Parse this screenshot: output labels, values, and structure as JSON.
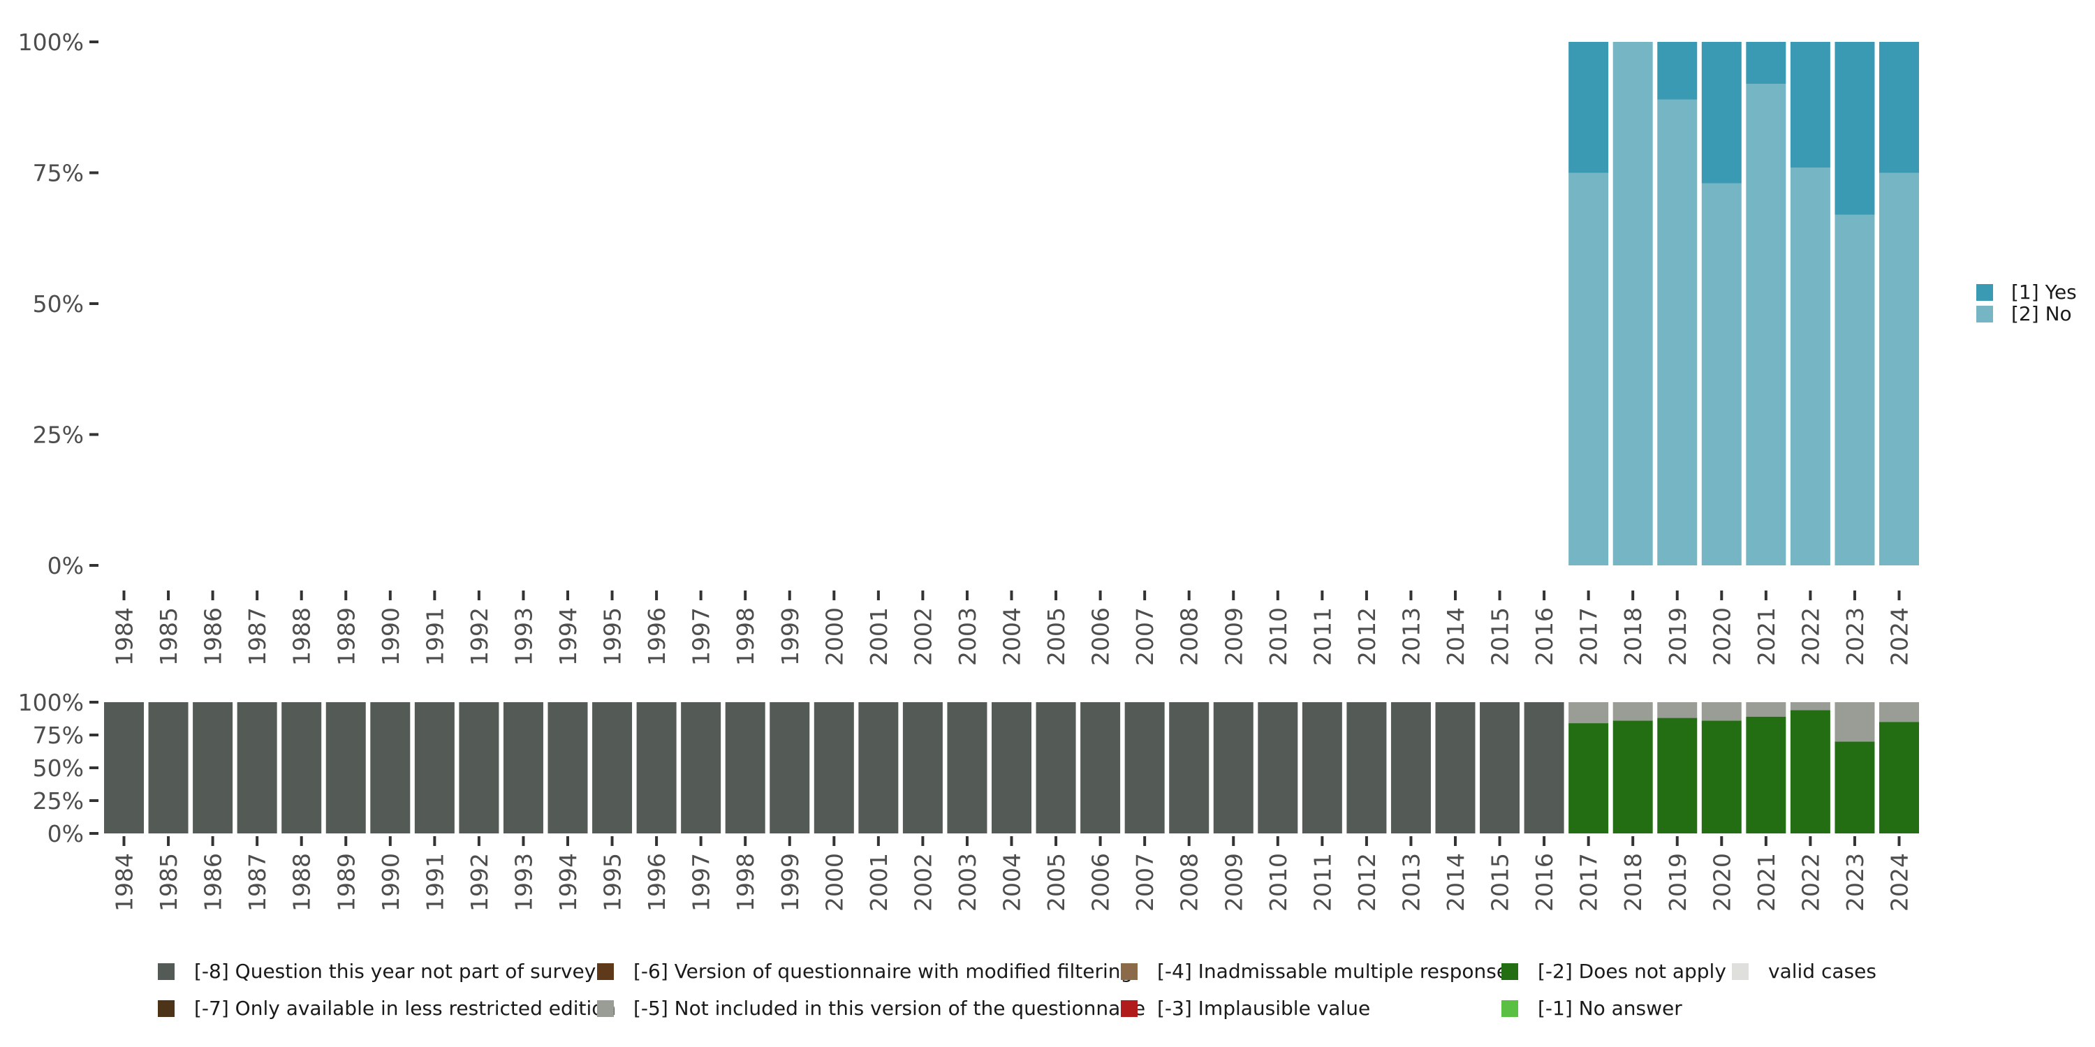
{
  "chart_data": [
    {
      "type": "bar",
      "stacked": true,
      "normalized": true,
      "title": "",
      "xlabel": "",
      "ylabel": "",
      "ylim": [
        0,
        100
      ],
      "yticks": [
        "0%",
        "25%",
        "50%",
        "75%",
        "100%"
      ],
      "categories": [
        "1984",
        "1985",
        "1986",
        "1987",
        "1988",
        "1989",
        "1990",
        "1991",
        "1992",
        "1993",
        "1994",
        "1995",
        "1996",
        "1997",
        "1998",
        "1999",
        "2000",
        "2001",
        "2002",
        "2003",
        "2004",
        "2005",
        "2006",
        "2007",
        "2008",
        "2009",
        "2010",
        "2011",
        "2012",
        "2013",
        "2014",
        "2015",
        "2016",
        "2017",
        "2018",
        "2019",
        "2020",
        "2021",
        "2022",
        "2023",
        "2024"
      ],
      "series": [
        {
          "name": "[2] No",
          "color": "#76b5c4",
          "values": [
            0,
            0,
            0,
            0,
            0,
            0,
            0,
            0,
            0,
            0,
            0,
            0,
            0,
            0,
            0,
            0,
            0,
            0,
            0,
            0,
            0,
            0,
            0,
            0,
            0,
            0,
            0,
            0,
            0,
            0,
            0,
            0,
            0,
            75,
            100,
            89,
            73,
            92,
            76,
            67,
            75
          ]
        },
        {
          "name": "[1] Yes",
          "color": "#3a9ab4",
          "values": [
            0,
            0,
            0,
            0,
            0,
            0,
            0,
            0,
            0,
            0,
            0,
            0,
            0,
            0,
            0,
            0,
            0,
            0,
            0,
            0,
            0,
            0,
            0,
            0,
            0,
            0,
            0,
            0,
            0,
            0,
            0,
            0,
            0,
            25,
            0,
            11,
            27,
            8,
            24,
            33,
            25
          ]
        }
      ],
      "legend": {
        "position": "right",
        "entries": [
          "[1] Yes",
          "[2] No"
        ]
      }
    },
    {
      "type": "bar",
      "stacked": true,
      "normalized": true,
      "title": "",
      "xlabel": "",
      "ylabel": "",
      "ylim": [
        0,
        100
      ],
      "yticks": [
        "0%",
        "25%",
        "50%",
        "75%",
        "100%"
      ],
      "categories": [
        "1984",
        "1985",
        "1986",
        "1987",
        "1988",
        "1989",
        "1990",
        "1991",
        "1992",
        "1993",
        "1994",
        "1995",
        "1996",
        "1997",
        "1998",
        "1999",
        "2000",
        "2001",
        "2002",
        "2003",
        "2004",
        "2005",
        "2006",
        "2007",
        "2008",
        "2009",
        "2010",
        "2011",
        "2012",
        "2013",
        "2014",
        "2015",
        "2016",
        "2017",
        "2018",
        "2019",
        "2020",
        "2021",
        "2022",
        "2023",
        "2024"
      ],
      "series": [
        {
          "name": "[-2] Does not apply",
          "color": "#236e12",
          "values": [
            0,
            0,
            0,
            0,
            0,
            0,
            0,
            0,
            0,
            0,
            0,
            0,
            0,
            0,
            0,
            0,
            0,
            0,
            0,
            0,
            0,
            0,
            0,
            0,
            0,
            0,
            0,
            0,
            0,
            0,
            0,
            0,
            0,
            84,
            86,
            88,
            86,
            89,
            94,
            70,
            85
          ]
        },
        {
          "name": "[-5] Not included in this version of the questionnaire",
          "color": "#9a9c96",
          "values": [
            0,
            0,
            0,
            0,
            0,
            0,
            0,
            0,
            0,
            0,
            0,
            0,
            0,
            0,
            0,
            0,
            0,
            0,
            0,
            0,
            0,
            0,
            0,
            0,
            0,
            0,
            0,
            0,
            0,
            0,
            0,
            0,
            0,
            16,
            14,
            12,
            14,
            11,
            6,
            30,
            15
          ]
        },
        {
          "name": "[-8] Question this year not part of survey",
          "color": "#545a55",
          "values": [
            100,
            100,
            100,
            100,
            100,
            100,
            100,
            100,
            100,
            100,
            100,
            100,
            100,
            100,
            100,
            100,
            100,
            100,
            100,
            100,
            100,
            100,
            100,
            100,
            100,
            100,
            100,
            100,
            100,
            100,
            100,
            100,
            100,
            0,
            0,
            0,
            0,
            0,
            0,
            0,
            0
          ]
        }
      ],
      "legend": {
        "position": "bottom",
        "entries": [
          {
            "label": "[-8] Question this year not part of survey",
            "color": "#545a55"
          },
          {
            "label": "[-7] Only available in less restricted edition",
            "color": "#4d3318"
          },
          {
            "label": "[-6] Version of questionnaire with modified filtering",
            "color": "#5e3a1a"
          },
          {
            "label": "[-5] Not included in this version of the questionnaire",
            "color": "#9a9c96"
          },
          {
            "label": "[-4] Inadmissable multiple response",
            "color": "#8a6a48"
          },
          {
            "label": "[-3] Implausible value",
            "color": "#b01b1b"
          },
          {
            "label": "[-2] Does not apply",
            "color": "#236e12"
          },
          {
            "label": "[-1] No answer",
            "color": "#5ac044"
          },
          {
            "label": "valid cases",
            "color": "#dfe0de"
          }
        ]
      }
    }
  ]
}
